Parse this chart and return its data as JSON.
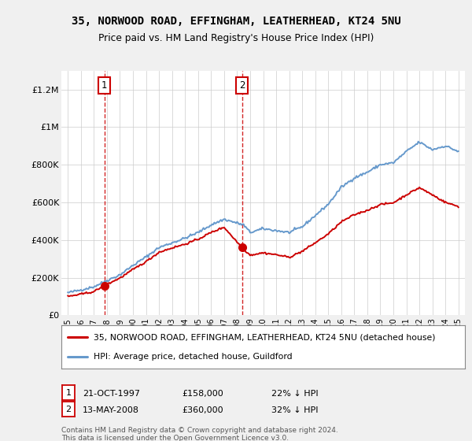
{
  "title": "35, NORWOOD ROAD, EFFINGHAM, LEATHERHEAD, KT24 5NU",
  "subtitle": "Price paid vs. HM Land Registry's House Price Index (HPI)",
  "legend_line1": "35, NORWOOD ROAD, EFFINGHAM, LEATHERHEAD, KT24 5NU (detached house)",
  "legend_line2": "HPI: Average price, detached house, Guildford",
  "footnote": "Contains HM Land Registry data © Crown copyright and database right 2024.\nThis data is licensed under the Open Government Licence v3.0.",
  "annotation1_date": "21-OCT-1997",
  "annotation1_price": "£158,000",
  "annotation1_hpi": "22% ↓ HPI",
  "annotation2_date": "13-MAY-2008",
  "annotation2_price": "£360,000",
  "annotation2_hpi": "32% ↓ HPI",
  "sale1_year": 1997.8,
  "sale1_value": 158000,
  "sale2_year": 2008.37,
  "sale2_value": 360000,
  "ylim": [
    0,
    1300000
  ],
  "xlim_start": 1994.5,
  "xlim_end": 2025.5,
  "red_color": "#cc0000",
  "blue_color": "#6699cc",
  "bg_color": "#f0f0f0",
  "plot_bg": "#ffffff",
  "grid_color": "#cccccc",
  "yticks": [
    0,
    200000,
    400000,
    600000,
    800000,
    1000000,
    1200000
  ],
  "ytick_labels": [
    "£0",
    "£200K",
    "£400K",
    "£600K",
    "£800K",
    "£1M",
    "£1.2M"
  ],
  "xticks": [
    1995,
    1996,
    1997,
    1998,
    1999,
    2000,
    2001,
    2002,
    2003,
    2004,
    2005,
    2006,
    2007,
    2008,
    2009,
    2010,
    2011,
    2012,
    2013,
    2014,
    2015,
    2016,
    2017,
    2018,
    2019,
    2020,
    2021,
    2022,
    2023,
    2024,
    2025
  ],
  "hpi_anchors_x": [
    1995,
    1996,
    1997,
    1998,
    1999,
    2000,
    2001,
    2002,
    2003,
    2004,
    2005,
    2006,
    2007,
    2008,
    2008.5,
    2009,
    2010,
    2011,
    2012,
    2013,
    2014,
    2015,
    2016,
    2017,
    2018,
    2019,
    2020,
    2021,
    2022,
    2023,
    2024,
    2025
  ],
  "hpi_anchors_y": [
    120000,
    135000,
    152000,
    185000,
    215000,
    265000,
    310000,
    360000,
    385000,
    410000,
    440000,
    480000,
    510000,
    490000,
    480000,
    440000,
    460000,
    450000,
    440000,
    470000,
    530000,
    590000,
    680000,
    730000,
    760000,
    800000,
    810000,
    870000,
    920000,
    880000,
    900000,
    870000
  ],
  "red_anchors_x": [
    1995,
    1996,
    1997,
    1997.8,
    1999,
    2000,
    2001,
    2002,
    2003,
    2004,
    2005,
    2006,
    2007,
    2008.37,
    2009,
    2010,
    2011,
    2012,
    2013,
    2014,
    2015,
    2016,
    2017,
    2018,
    2019,
    2020,
    2021,
    2022,
    2023,
    2024,
    2025
  ],
  "red_anchors_y": [
    100000,
    112000,
    126000,
    158000,
    198000,
    243000,
    285000,
    335000,
    358000,
    378000,
    404000,
    440000,
    468000,
    360000,
    320000,
    332000,
    322000,
    308000,
    340000,
    385000,
    432000,
    496000,
    534000,
    558000,
    588000,
    598000,
    640000,
    678000,
    640000,
    600000,
    578000
  ]
}
